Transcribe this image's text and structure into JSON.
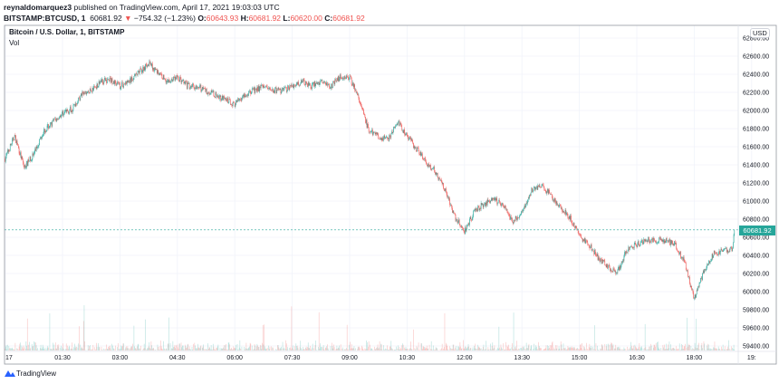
{
  "header": {
    "author": "reynaldomarquez3",
    "published": "published on TradingView.com, April 17, 2021 19:03:03 UTC",
    "symbol": "BITSTAMP:BTCUSD, 1",
    "last": "60681.92",
    "change": "−754.32 (−1.23%)",
    "o_label": "O:",
    "o": "60643.93",
    "h_label": "H:",
    "h": "60681.92",
    "l_label": "L:",
    "l": "60620.00",
    "c_label": "C:",
    "c": "60681.92"
  },
  "legend": {
    "title": "Bitcoin / U.S. Dollar, 1, BITSTAMP",
    "volume": "Vol"
  },
  "currency": "USD",
  "brand": "TradingView",
  "colors": {
    "up": "#26a69a",
    "down": "#ef5350",
    "grid": "#f0f3fa"
  },
  "chart_data": {
    "type": "candlestick",
    "interval": "1 minute",
    "ylim": [
      59400,
      62800
    ],
    "yticks": [
      "62800.00",
      "62600.00",
      "62400.00",
      "62200.00",
      "62000.00",
      "61800.00",
      "61600.00",
      "61400.00",
      "61200.00",
      "61000.00",
      "60800.00",
      "60600.00",
      "60400.00",
      "60200.00",
      "60000.00",
      "59800.00",
      "59600.00",
      "59400.00"
    ],
    "xticks": [
      "17",
      "01:30",
      "03:00",
      "04:30",
      "06:00",
      "07:30",
      "09:00",
      "10:30",
      "12:00",
      "13:30",
      "15:00",
      "16:30",
      "18:00",
      "19:"
    ],
    "last_price": "60681.92",
    "close_every_15min_from_00_00": [
      61470,
      61720,
      61370,
      61520,
      61770,
      61870,
      61970,
      62020,
      62170,
      62220,
      62320,
      62340,
      62270,
      62320,
      62420,
      62520,
      62420,
      62320,
      62370,
      62270,
      62270,
      62220,
      62170,
      62120,
      62070,
      62170,
      62220,
      62270,
      62220,
      62220,
      62270,
      62320,
      62270,
      62320,
      62270,
      62370,
      62370,
      62120,
      61770,
      61720,
      61670,
      61870,
      61720,
      61570,
      61420,
      61320,
      61120,
      60820,
      60670,
      60870,
      60970,
      61020,
      60970,
      60770,
      60870,
      61120,
      61170,
      61070,
      60920,
      60820,
      60620,
      60520,
      60370,
      60270,
      60220,
      60470,
      60520,
      60570,
      60570,
      60570,
      60520,
      60320,
      59920,
      60220,
      60420,
      60440,
      60470
    ],
    "final_close": 60681.92
  }
}
